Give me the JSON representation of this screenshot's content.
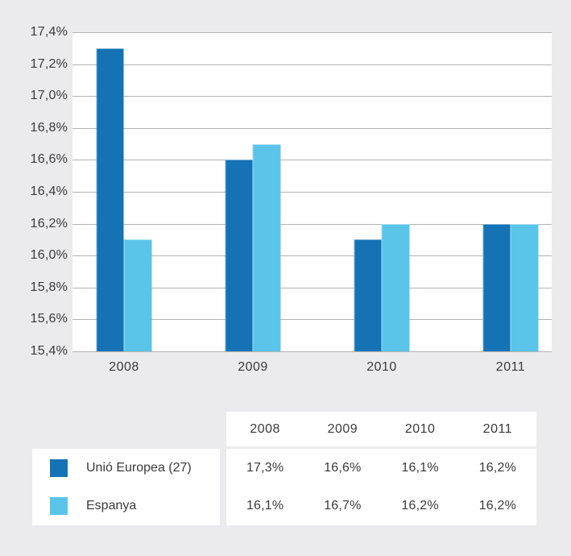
{
  "chart_data": {
    "type": "bar",
    "categories": [
      "2008",
      "2009",
      "2010",
      "2011"
    ],
    "series": [
      {
        "name": "Unió Europea (27)",
        "color": "#1572b4",
        "values": [
          17.3,
          16.6,
          16.1,
          16.2
        ]
      },
      {
        "name": "Espanya",
        "color": "#5bc4e9",
        "values": [
          16.1,
          16.7,
          16.2,
          16.2
        ]
      }
    ],
    "ylim": [
      15.4,
      17.4
    ],
    "ytick_step": 0.2,
    "ytick_labels_top_to_bottom": [
      "17,4%",
      "17,2%",
      "17,0%",
      "16,8%",
      "16,6%",
      "16,4%",
      "16,2%",
      "16,0%",
      "15,8%",
      "15,6%",
      "15,4%"
    ],
    "grid": true,
    "legend_position": "bottom-left-table"
  },
  "table": {
    "columns": [
      "2008",
      "2009",
      "2010",
      "2011"
    ],
    "rows": [
      {
        "label": "Unió Europea (27)",
        "swatch_color": "#1572b4",
        "values": [
          "17,3%",
          "16,6%",
          "16,1%",
          "16,2%"
        ]
      },
      {
        "label": "Espanya",
        "swatch_color": "#5bc4e9",
        "values": [
          "16,1%",
          "16,7%",
          "16,2%",
          "16,2%"
        ]
      }
    ]
  },
  "colors": {
    "page_background": "#ebebed",
    "plot_background": "#ffffff",
    "gridline": "#b3b3b3",
    "text": "#3a3a3a",
    "series_dark_blue": "#1572b4",
    "series_light_blue": "#5bc4e9"
  }
}
